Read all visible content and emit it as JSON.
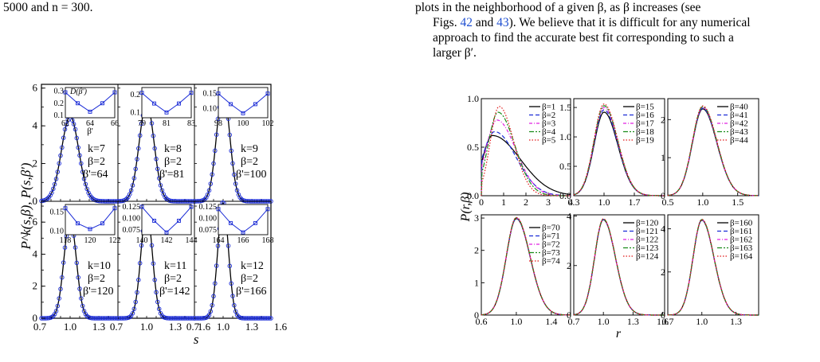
{
  "text": {
    "left_top": "5000 and n = 300.",
    "right_line1": "plots in the neighborhood of a given β, as β increases (see",
    "right_line2_pre": "Figs. ",
    "right_line2_ref1": "42",
    "right_line2_mid": " and ",
    "right_line2_ref2": "43",
    "right_line2_post": "). We believe that it is difficult for any numerical",
    "right_line3": "approach to find the accurate best fit corresponding to such a",
    "right_line4": "larger β′."
  },
  "colors": {
    "curve": "#000000",
    "markers": "#1a2bd6",
    "b1": "#000000",
    "b2": "#1a2bd6",
    "b3": "#e020e0",
    "b4": "#1a8c1a",
    "b5": "#e01818"
  },
  "chart_data": [
    {
      "type": "line",
      "ylabel": "P^k(s,β), P(s,β')",
      "xlabel": "s",
      "panels": [
        {
          "k": "k=7",
          "beta": "β=2",
          "betap": "β'=64",
          "xlim": [
            0.7,
            1.5
          ],
          "ylim": [
            0,
            6.2
          ],
          "xticks": [],
          "yticks": [
            "0",
            "2",
            "4",
            "6"
          ],
          "peak": 4.5,
          "center": 1.0,
          "width": 0.09,
          "inset": {
            "x": [
              62,
              63,
              64,
              65,
              66
            ],
            "y": [
              0.29,
              0.2,
              0.13,
              0.2,
              0.29
            ],
            "xticks": [
              "62",
              "64",
              "66"
            ],
            "yticks": [
              "0.1",
              "0.2",
              "0.3"
            ],
            "xlabel": "β'",
            "ylabel": "D(β')",
            "xlim": [
              62,
              66
            ],
            "ylim": [
              0.08,
              0.33
            ]
          }
        },
        {
          "k": "k=8",
          "beta": "β=2",
          "betap": "β'=81",
          "xlim": [
            0.7,
            1.5
          ],
          "ylim": [
            0,
            6.2
          ],
          "xticks": [],
          "yticks": [],
          "peak": 5.2,
          "center": 1.0,
          "width": 0.077,
          "inset": {
            "x": [
              79,
              80,
              81,
              82,
              83
            ],
            "y": [
              0.21,
              0.15,
              0.1,
              0.15,
              0.21
            ],
            "xticks": [
              "79",
              "81",
              "83"
            ],
            "yticks": [
              "0.1",
              "0.2"
            ],
            "xlim": [
              79,
              83
            ],
            "ylim": [
              0.07,
              0.24
            ]
          }
        },
        {
          "k": "k=9",
          "beta": "β=2",
          "betap": "β'=100",
          "xlim": [
            0.7,
            1.5
          ],
          "ylim": [
            0,
            6.2
          ],
          "xticks": [],
          "yticks": [],
          "peak": 5.9,
          "center": 1.0,
          "width": 0.068,
          "inset": {
            "x": [
              98,
              99,
              100,
              101,
              102
            ],
            "y": [
              0.15,
              0.115,
              0.085,
              0.115,
              0.15
            ],
            "xticks": [
              "98",
              "100",
              "102"
            ],
            "yticks": [
              "0.10",
              "0.15"
            ],
            "xlim": [
              98,
              102
            ],
            "ylim": [
              0.07,
              0.17
            ]
          }
        },
        {
          "k": "k=10",
          "beta": "β=2",
          "betap": "β'=120",
          "xlim": [
            0.7,
            1.5
          ],
          "ylim": [
            0,
            7.3
          ],
          "xticks": [
            "0.7",
            "1.0",
            "1.3"
          ],
          "yticks": [
            "0",
            "2",
            "4",
            "6"
          ],
          "peak": 6.2,
          "center": 1.0,
          "width": 0.064,
          "inset": {
            "x": [
              118,
              119,
              120,
              121,
              122
            ],
            "y": [
              0.16,
              0.12,
              0.105,
              0.12,
              0.16
            ],
            "xticks": [
              "118",
              "120",
              "122"
            ],
            "yticks": [
              "0.10",
              "0.15"
            ],
            "xlim": [
              118,
              122
            ],
            "ylim": [
              0.09,
              0.17
            ]
          }
        },
        {
          "k": "k=11",
          "beta": "β=2",
          "betap": "β'=142",
          "xlim": [
            0.7,
            1.5
          ],
          "ylim": [
            0,
            7.3
          ],
          "xticks": [
            "0.7",
            "1.0",
            "1.3",
            "1.6"
          ],
          "yticks": [],
          "peak": 6.8,
          "center": 1.0,
          "width": 0.059,
          "inset": {
            "x": [
              140,
              141,
              142,
              143,
              144
            ],
            "y": [
              0.125,
              0.095,
              0.07,
              0.095,
              0.125
            ],
            "xticks": [
              "140",
              "142",
              "144"
            ],
            "yticks": [
              "0.075",
              "0.100",
              "0.125"
            ],
            "xlim": [
              140,
              144
            ],
            "ylim": [
              0.065,
              0.13
            ]
          }
        },
        {
          "k": "k=12",
          "beta": "β=2",
          "betap": "β'=166",
          "xlim": [
            0.7,
            1.5
          ],
          "ylim": [
            0,
            7.3
          ],
          "xticks": [
            "0.7",
            "1.0",
            "1.3",
            "1.6"
          ],
          "yticks": [],
          "peak": 7.2,
          "center": 1.0,
          "width": 0.055,
          "inset": {
            "x": [
              164,
              165,
              166,
              167,
              168
            ],
            "y": [
              0.12,
              0.09,
              0.07,
              0.09,
              0.12
            ],
            "xticks": [
              "164",
              "166",
              "168"
            ],
            "yticks": [
              "0.075",
              "0.100",
              "0.125"
            ],
            "xlim": [
              164,
              168
            ],
            "ylim": [
              0.065,
              0.13
            ]
          }
        }
      ]
    },
    {
      "type": "line",
      "ylabel": "P(r,β)",
      "xlabel": "r",
      "panels": [
        {
          "xlim": [
            0,
            4
          ],
          "ylim": [
            0,
            1.0
          ],
          "xticks": [
            "0",
            "1",
            "2",
            "3",
            "4"
          ],
          "yticks": [
            "0.0",
            "0.5",
            "1.0"
          ],
          "legend": [
            "β=1",
            "β=2",
            "β=3",
            "β=4",
            "β=5"
          ],
          "betas": [
            1,
            2,
            3,
            4,
            5
          ],
          "mode": "small"
        },
        {
          "xlim": [
            0.3,
            2.4
          ],
          "ylim": [
            0,
            1.65
          ],
          "xticks": [
            "0.3",
            "1.0",
            "1.7"
          ],
          "yticks": [
            "0.0",
            "0.5",
            "1.0",
            "1.5"
          ],
          "legend": [
            "β=15",
            "β=16",
            "β=17",
            "β=18",
            "β=19"
          ],
          "peaks": [
            1.42,
            1.46,
            1.5,
            1.53,
            1.56
          ],
          "width": 0.27
        },
        {
          "xlim": [
            0.5,
            1.8
          ],
          "ylim": [
            0,
            2.55
          ],
          "xticks": [
            "0.5",
            "1.0",
            "1.5"
          ],
          "yticks": [
            "0",
            "1",
            "2"
          ],
          "legend": [
            "β=40",
            "β=41",
            "β=42",
            "β=43",
            "β=44"
          ],
          "peaks": [
            2.28,
            2.3,
            2.32,
            2.34,
            2.36
          ],
          "width": 0.172
        },
        {
          "xlim": [
            0.6,
            1.62
          ],
          "ylim": [
            0,
            3.1
          ],
          "xticks": [
            "0.6",
            "1.0",
            "1.4"
          ],
          "yticks": [
            "0",
            "1",
            "2",
            "3"
          ],
          "legend": [
            "β=70",
            "β=71",
            "β=72",
            "β=73",
            "β=74"
          ],
          "peaks": [
            2.98,
            2.99,
            3.0,
            3.01,
            3.02
          ],
          "width": 0.133
        },
        {
          "xlim": [
            0.7,
            1.62
          ],
          "ylim": [
            0,
            4.05
          ],
          "xticks": [
            "0.7",
            "1.0",
            "1.3",
            "1.6"
          ],
          "yticks": [
            "0",
            "2",
            "4"
          ],
          "legend": [
            "β=120",
            "β=121",
            "β=122",
            "β=123",
            "β=124"
          ],
          "peaks": [
            3.85,
            3.86,
            3.87,
            3.88,
            3.89
          ],
          "width": 0.103
        },
        {
          "xlim": [
            0.7,
            1.5
          ],
          "ylim": [
            0,
            4.65
          ],
          "xticks": [
            "0.7",
            "1.0",
            "1.3"
          ],
          "yticks": [
            "0",
            "2",
            "4"
          ],
          "legend": [
            "β=160",
            "β=161",
            "β=162",
            "β=163",
            "β=164"
          ],
          "peaks": [
            4.4,
            4.41,
            4.42,
            4.43,
            4.44
          ],
          "width": 0.09
        }
      ]
    }
  ]
}
